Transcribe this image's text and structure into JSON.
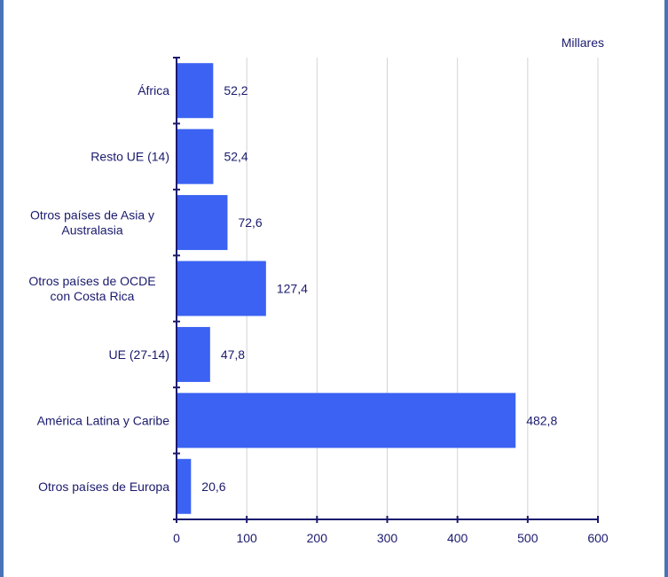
{
  "chart_data": {
    "type": "bar",
    "orientation": "horizontal",
    "unit_label": "Millares",
    "categories": [
      [
        "África"
      ],
      [
        "Resto UE (14)"
      ],
      [
        "Otros países de Asia y",
        "Australasia"
      ],
      [
        "Otros países de OCDE",
        "con Costa Rica"
      ],
      [
        "UE (27-14)"
      ],
      [
        "América Latina y Caribe"
      ],
      [
        "Otros países de Europa"
      ]
    ],
    "values": [
      52.2,
      52.4,
      72.6,
      127.4,
      47.8,
      482.8,
      20.6
    ],
    "value_labels": [
      "52,2",
      "52,4",
      "72,6",
      "127,4",
      "47,8",
      "482,8",
      "20,6"
    ],
    "xlim": [
      0,
      600
    ],
    "xticks": [
      0,
      100,
      200,
      300,
      400,
      500,
      600
    ],
    "grid": true,
    "colors": {
      "bar": "#3b62f2",
      "axis": "#1a1a6e",
      "grid": "#d4d4d4",
      "frame": "#4a72b8"
    }
  }
}
